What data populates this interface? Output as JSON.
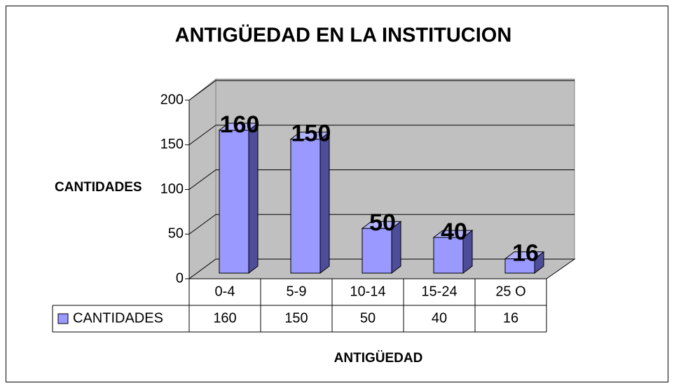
{
  "chart_data": {
    "type": "bar",
    "title": "ANTIGÜEDAD EN LA INSTITUCION",
    "x_label": "ANTIGÜEDAD",
    "y_label": "CANTIDADES",
    "categories": [
      "0-4",
      "5-9",
      "10-14",
      "15-24",
      "25 O"
    ],
    "series": [
      {
        "name": "CANTIDADES",
        "color": "#9999ff",
        "values": [
          160,
          150,
          50,
          40,
          16
        ]
      }
    ],
    "ylim": [
      0,
      200
    ],
    "yticks": [
      0,
      50,
      100,
      150,
      200
    ],
    "grid": true
  }
}
